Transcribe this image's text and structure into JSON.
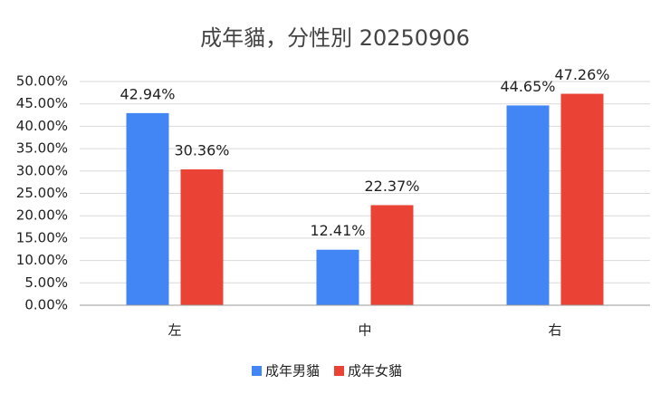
{
  "chart_data": {
    "type": "bar",
    "title": "成年貓，分性別 20250906",
    "categories": [
      "左",
      "中",
      "右"
    ],
    "series": [
      {
        "name": "成年男貓",
        "color": "#4285f4",
        "values": [
          42.94,
          12.41,
          44.65
        ],
        "value_labels": [
          "42.94%",
          "12.41%",
          "44.65%"
        ]
      },
      {
        "name": "成年女貓",
        "color": "#ea4335",
        "values": [
          30.36,
          22.37,
          47.26
        ],
        "value_labels": [
          "30.36%",
          "22.37%",
          "47.26%"
        ]
      }
    ],
    "ylim": [
      0,
      50
    ],
    "yticks": [
      {
        "value": 0,
        "label": "0.00%"
      },
      {
        "value": 5,
        "label": "5.00%"
      },
      {
        "value": 10,
        "label": "10.00%"
      },
      {
        "value": 15,
        "label": "15.00%"
      },
      {
        "value": 20,
        "label": "20.00%"
      },
      {
        "value": 25,
        "label": "25.00%"
      },
      {
        "value": 30,
        "label": "30.00%"
      },
      {
        "value": 35,
        "label": "35.00%"
      },
      {
        "value": 40,
        "label": "40.00%"
      },
      {
        "value": 45,
        "label": "45.00%"
      },
      {
        "value": 50,
        "label": "50.00%"
      }
    ],
    "grid": true,
    "legend": "bottom"
  }
}
